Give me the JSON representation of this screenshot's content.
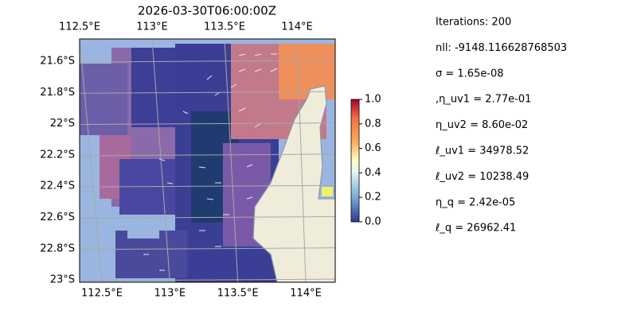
{
  "map": {
    "title": "2026-03-30T06:00:00Z",
    "lon_ticks": [
      {
        "value": 112.5,
        "label": "112.5°E"
      },
      {
        "value": 113,
        "label": "113°E"
      },
      {
        "value": 113.5,
        "label": "113.5°E"
      },
      {
        "value": 114,
        "label": "114°E"
      }
    ],
    "lat_ticks": [
      {
        "value": -21.6,
        "label": "21.6°S"
      },
      {
        "value": -21.8,
        "label": "21.8°S"
      },
      {
        "value": -22,
        "label": "22°S"
      },
      {
        "value": -22.2,
        "label": "22.2°S"
      },
      {
        "value": -22.4,
        "label": "22.4°S"
      },
      {
        "value": -22.6,
        "label": "22.6°S"
      },
      {
        "value": -22.8,
        "label": "22.8°S"
      },
      {
        "value": -23,
        "label": "23°S"
      }
    ],
    "colorbar": {
      "range": [
        0,
        1
      ],
      "ticks": [
        {
          "value": 0,
          "label": "0.0"
        },
        {
          "value": 0.2,
          "label": "0.2"
        },
        {
          "value": 0.4,
          "label": "0.4"
        },
        {
          "value": 0.6,
          "label": "0.6"
        },
        {
          "value": 0.8,
          "label": "0.8"
        },
        {
          "value": 1,
          "label": "1.0"
        }
      ]
    }
  },
  "info": [
    "Iterations: 200",
    "nll: -9148.116628768503",
    "σ = 1.65e-08",
    ",η_uv1 = 2.77e-01",
    "η_uv2 = 8.60e-02",
    "ℓ_uv1 = 34978.52",
    "ℓ_uv2 = 10238.49",
    "η_q = 2.42e-05",
    "ℓ_q = 26962.41"
  ]
}
